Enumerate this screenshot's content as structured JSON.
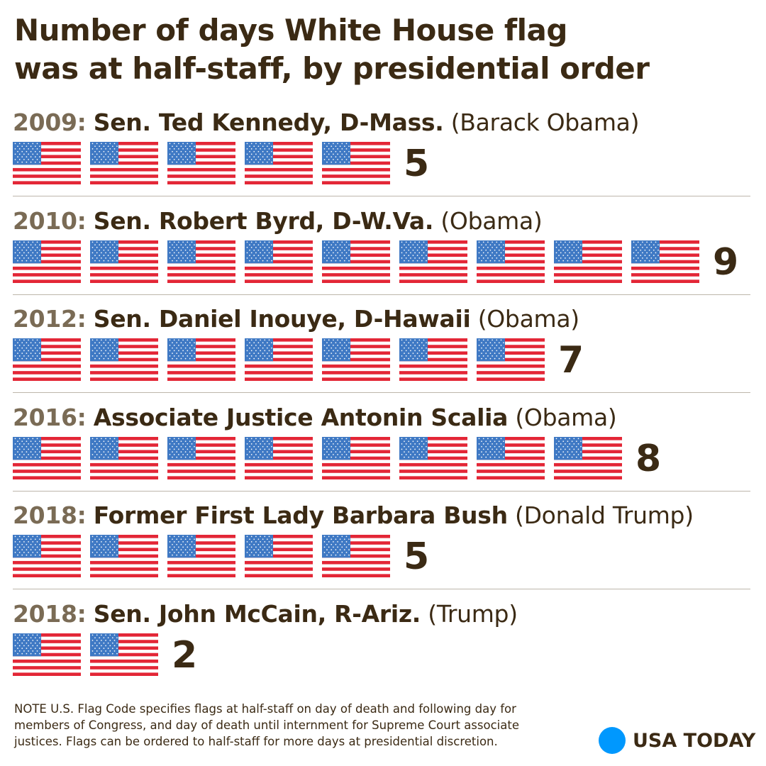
{
  "title": {
    "line1": "Number of days White House flag",
    "line2": "was at half-staff, by presidential order"
  },
  "colors": {
    "text": "#3b2a14",
    "year": "#7a6b55",
    "flag_red": "#e32636",
    "flag_blue": "#3f79c4",
    "brand_dot": "#0098fe",
    "divider": "#bdb6ab"
  },
  "chart_data": {
    "type": "pictograph",
    "title": "Number of days White House flag was at half-staff, by presidential order",
    "unit_icon": "us-flag-icon",
    "unit_value": 1,
    "rows": [
      {
        "year": "2009:",
        "name": "Sen. Ted Kennedy, D-Mass.",
        "president": "(Barack Obama)",
        "days": 5,
        "days_label": "5"
      },
      {
        "year": "2010:",
        "name": "Sen. Robert Byrd, D-W.Va.",
        "president": "(Obama)",
        "days": 9,
        "days_label": "9"
      },
      {
        "year": "2012:",
        "name": "Sen. Daniel Inouye, D-Hawaii",
        "president": "(Obama)",
        "days": 7,
        "days_label": "7"
      },
      {
        "year": "2016:",
        "name": "Associate Justice Antonin Scalia",
        "president": "(Obama)",
        "days": 8,
        "days_label": "8"
      },
      {
        "year": "2018:",
        "name": "Former First Lady Barbara Bush",
        "president": "(Donald Trump)",
        "days": 5,
        "days_label": "5"
      },
      {
        "year": "2018:",
        "name": "Sen. John McCain, R-Ariz.",
        "president": "(Trump)",
        "days": 2,
        "days_label": "2"
      }
    ]
  },
  "footer": {
    "note_line1": "NOTE U.S. Flag Code specifies flags at half-staff on day of death and following day for",
    "note_line2": "members of Congress, and day of death until internment for Supreme Court associate",
    "note_line3": "justices. Flags can be ordered to half-staff for more days at presidential discretion.",
    "brand": "USA TODAY"
  }
}
